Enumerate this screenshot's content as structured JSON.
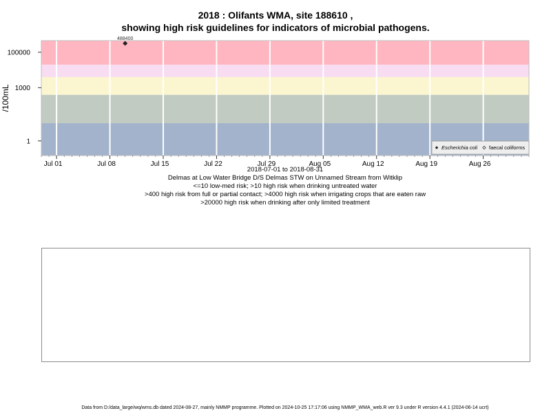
{
  "title_line1": "2018 : Olifants WMA, site 188610 ,",
  "title_line2": "showing high risk guidelines for indicators of microbial pathogens.",
  "captions": [
    "2018-07-01 to 2018-08-31",
    "Delmas at Low Water Bridge D/S Delmas STW on Unnamed Stream from Witklip",
    "<=10 low-med risk; >10 high risk when drinking untreated water",
    ">400 high risk from full or partial contact; >4000 high risk when irrigating crops that are eaten raw",
    ">20000 high risk when drinking after only limited treatment"
  ],
  "footer": "Data from D:/data_large/wq/wms.db dated 2024-08-27, mainly NMMP programme. Plotted on 2024-10-25 17:17:06 using NMMP_WMA_web.R ver 9.3 under R version 4.4.1 (2024-06-14 ucrt)",
  "chart_data": {
    "type": "scatter",
    "title": "2018 : Olifants WMA, site 188610 , showing high risk guidelines for indicators of microbial pathogens.",
    "xlabel": "2018-07-01 to 2018-08-31",
    "ylabel": "/100mL",
    "y_scale": "log10",
    "xlim": [
      "2018-06-29",
      "2018-09-01"
    ],
    "ylim": [
      0.15,
      450000
    ],
    "x_tick_labels": [
      "Jul 01",
      "Jul 08",
      "Jul 15",
      "Jul 22",
      "Jul 29",
      "Aug 05",
      "Aug 12",
      "Aug 19",
      "Aug 26"
    ],
    "x_tick_dates": [
      "2018-07-01",
      "2018-07-08",
      "2018-07-15",
      "2018-07-22",
      "2018-07-29",
      "2018-08-05",
      "2018-08-12",
      "2018-08-19",
      "2018-08-26"
    ],
    "y_tick_values": [
      1,
      1000,
      100000
    ],
    "y_tick_labels": [
      "1",
      "1000",
      "100000"
    ],
    "grid": true,
    "risk_bands": [
      {
        "from": 0.15,
        "to": 10,
        "color": "#a3b3cb"
      },
      {
        "from": 10,
        "to": 400,
        "color": "#c1cbc2"
      },
      {
        "from": 400,
        "to": 4000,
        "color": "#fcf6d0"
      },
      {
        "from": 4000,
        "to": 20000,
        "color": "#f8dcf2"
      },
      {
        "from": 20000,
        "to": 450000,
        "color": "#ffb6c1"
      }
    ],
    "series": [
      {
        "name": "Escherichia coli",
        "marker": "filled-diamond",
        "points": [
          {
            "x": "2018-07-10",
            "y": 488400,
            "label": "488400"
          }
        ]
      },
      {
        "name": "faecal coliforms",
        "marker": "open-diamond",
        "points": []
      }
    ],
    "legend_position": "bottom-right"
  }
}
